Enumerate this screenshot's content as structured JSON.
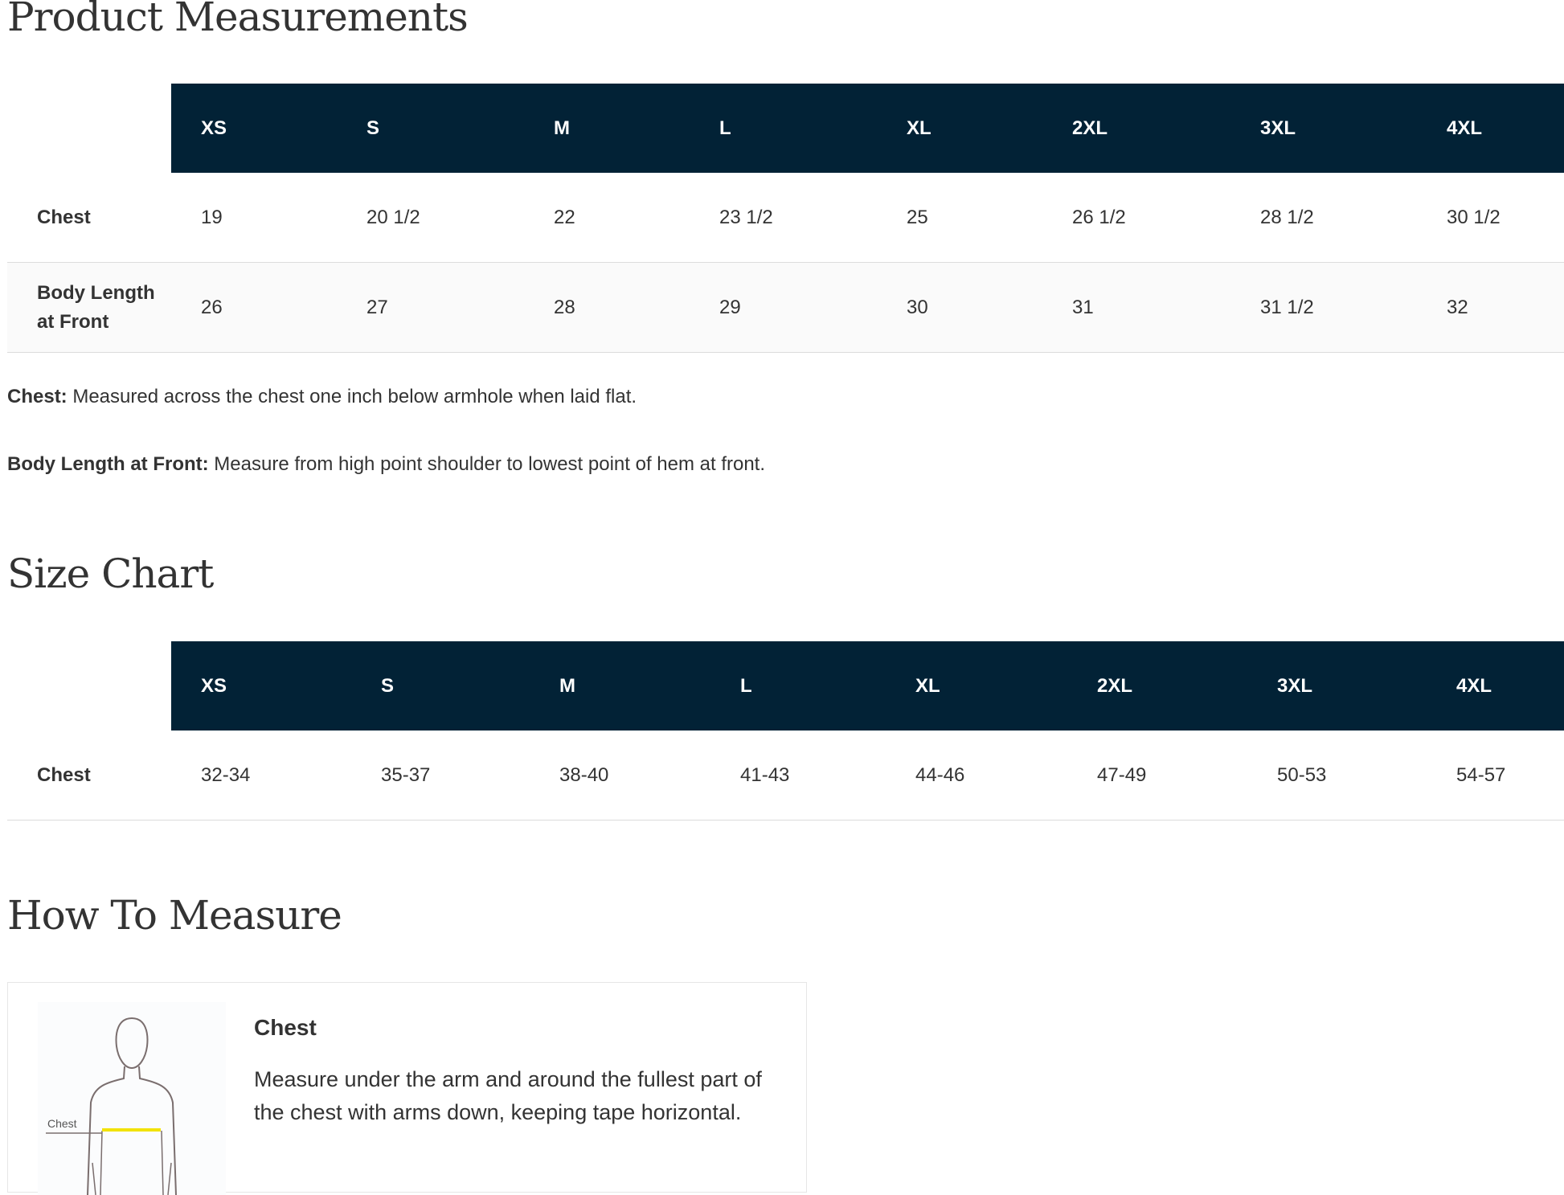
{
  "product_measurements": {
    "title": "Product Measurements",
    "sizes": [
      "XS",
      "S",
      "M",
      "L",
      "XL",
      "2XL",
      "3XL",
      "4XL"
    ],
    "rows": [
      {
        "label": "Chest",
        "values": [
          "19",
          "20 1/2",
          "22",
          "23 1/2",
          "25",
          "26 1/2",
          "28 1/2",
          "30 1/2"
        ]
      },
      {
        "label": "Body Length at Front",
        "values": [
          "26",
          "27",
          "28",
          "29",
          "30",
          "31",
          "31 1/2",
          "32"
        ]
      }
    ],
    "notes": [
      {
        "term": "Chest:",
        "text": " Measured across the chest one inch below armhole when laid flat."
      },
      {
        "term": "Body Length at Front:",
        "text": " Measure from high point shoulder to lowest point of hem at front."
      }
    ]
  },
  "size_chart": {
    "title": "Size Chart",
    "sizes": [
      "XS",
      "S",
      "M",
      "L",
      "XL",
      "2XL",
      "3XL",
      "4XL"
    ],
    "rows": [
      {
        "label": "Chest",
        "values": [
          "32-34",
          "35-37",
          "38-40",
          "41-43",
          "44-46",
          "47-49",
          "50-53",
          "54-57"
        ]
      }
    ]
  },
  "how_to_measure": {
    "title": "How To Measure",
    "items": [
      {
        "figure_label": "Chest",
        "heading": "Chest",
        "description": "Measure under the arm and around the fullest part of the chest with arms down, keeping tape horizontal."
      }
    ]
  },
  "colors": {
    "header_bg": "#022236",
    "text": "#333333",
    "tape": "#f2e200"
  }
}
